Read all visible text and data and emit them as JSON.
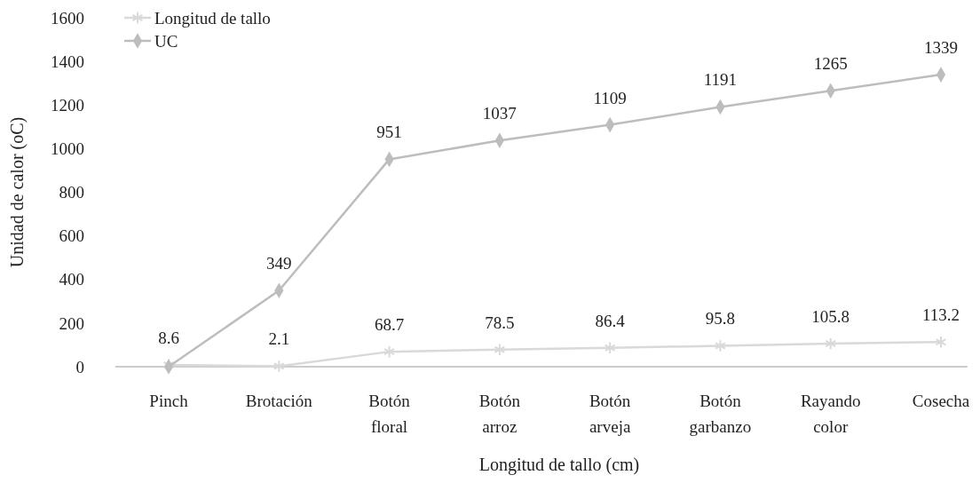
{
  "chart_data": {
    "type": "line",
    "xlabel": "Longitud de tallo (cm)",
    "ylabel": "Unidad de calor (oC)",
    "categories": [
      "Pinch",
      "Brotación",
      "Botón floral",
      "Botón arroz",
      "Botón arveja",
      "Botón garbanzo",
      "Rayando color",
      "Cosecha"
    ],
    "series": [
      {
        "name": "Longitud de tallo",
        "color": "#d9d9d9",
        "marker": "cross",
        "values": [
          8.6,
          2.1,
          68.7,
          78.5,
          86.4,
          95.8,
          105.8,
          113.2
        ],
        "value_labels": [
          "8.6",
          "2.1",
          "68.7",
          "78.5",
          "86.4",
          "95.8",
          "105.8",
          "113.2"
        ]
      },
      {
        "name": "UC",
        "color": "#bdbdbd",
        "marker": "diamond",
        "values": [
          0,
          349,
          951,
          1037,
          1109,
          1191,
          1265,
          1339
        ],
        "value_labels": [
          null,
          "349",
          "951",
          "1037",
          "1109",
          "1191",
          "1265",
          "1339"
        ]
      }
    ],
    "ylim": [
      0,
      1600
    ],
    "yticks": [
      0,
      200,
      400,
      600,
      800,
      1000,
      1200,
      1400,
      1600
    ],
    "grid": false,
    "legend": "top left"
  }
}
